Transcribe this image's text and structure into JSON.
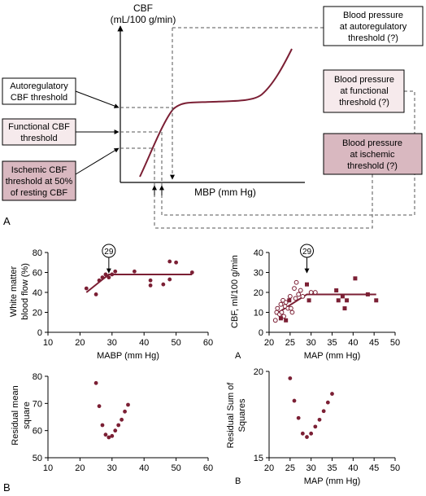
{
  "colors": {
    "curve": "#7b1f34",
    "box_light": "#f6eaec",
    "box_dark": "#d9b8c0",
    "axis": "#000000",
    "dashed": "#555555"
  },
  "panel_a_top": {
    "panel_label": "A",
    "yaxis_label_line1": "CBF",
    "yaxis_label_line2": "(mL/100 g/min)",
    "xaxis_label": "MBP (mm Hg)",
    "left_labels": [
      {
        "lines": [
          "Autoregulatory",
          "CBF threshold"
        ],
        "fill": "white"
      },
      {
        "lines": [
          "Functional CBF",
          "threshold"
        ],
        "fill": "light"
      },
      {
        "lines": [
          "Ischemic CBF",
          "threshold at 50%",
          "of resting CBF"
        ],
        "fill": "dark"
      }
    ],
    "right_labels": [
      {
        "lines": [
          "Blood pressure",
          "at autoregulatory",
          "threshold (?)"
        ],
        "fill": "white"
      },
      {
        "lines": [
          "Blood pressure",
          "at functional",
          "threshold (?)"
        ],
        "fill": "light"
      },
      {
        "lines": [
          "Blood pressure",
          "at ischemic",
          "threshold (?)"
        ],
        "fill": "dark"
      }
    ]
  },
  "chart_data": [
    {
      "type": "scatter",
      "ylabel": "White matter blood flow (%)",
      "xlabel": "MABP (mm Hg)",
      "xlim": [
        10,
        60
      ],
      "ylim": [
        0,
        80
      ],
      "xticks": [
        10,
        20,
        30,
        40,
        50,
        60
      ],
      "yticks": [
        0,
        20,
        40,
        60,
        80
      ],
      "points": [
        [
          22,
          44
        ],
        [
          25,
          38
        ],
        [
          26,
          52
        ],
        [
          27,
          55
        ],
        [
          28,
          58
        ],
        [
          29,
          55
        ],
        [
          30,
          58
        ],
        [
          31,
          61
        ],
        [
          37,
          61
        ],
        [
          42,
          52
        ],
        [
          42,
          47
        ],
        [
          46,
          48
        ],
        [
          48,
          53
        ],
        [
          48,
          71
        ],
        [
          50,
          70
        ],
        [
          55,
          60
        ]
      ],
      "fit_line": [
        [
          22,
          40
        ],
        [
          29,
          58
        ],
        [
          55,
          58
        ]
      ],
      "annotation": {
        "text": "29",
        "x": 29
      }
    },
    {
      "type": "scatter",
      "ylabel": "CBF, ml/100 g/min",
      "xlabel": "MAP (mm Hg)",
      "sublabel": "A",
      "xlim": [
        20,
        50
      ],
      "ylim": [
        0,
        40
      ],
      "xticks": [
        20,
        25,
        30,
        35,
        40,
        45,
        50
      ],
      "yticks": [
        0,
        10,
        20,
        30,
        40
      ],
      "points_open": [
        [
          21.5,
          6
        ],
        [
          21.8,
          10
        ],
        [
          22,
          12
        ],
        [
          22.5,
          9
        ],
        [
          22.8,
          14
        ],
        [
          23,
          10
        ],
        [
          23.3,
          16
        ],
        [
          23.5,
          8
        ],
        [
          23.8,
          13
        ],
        [
          24,
          15
        ],
        [
          24.5,
          12
        ],
        [
          25,
          18
        ],
        [
          25.2,
          12
        ],
        [
          25.5,
          10
        ],
        [
          26,
          22
        ],
        [
          26.3,
          17
        ],
        [
          26.5,
          25
        ],
        [
          27,
          19
        ],
        [
          27.5,
          21
        ],
        [
          28,
          18
        ],
        [
          30,
          20
        ],
        [
          31,
          20
        ]
      ],
      "points_filled": [
        [
          22.8,
          7
        ],
        [
          24,
          6
        ],
        [
          24.8,
          16
        ],
        [
          29,
          24
        ],
        [
          29.5,
          16
        ],
        [
          36,
          21
        ],
        [
          36.5,
          16
        ],
        [
          37.5,
          18
        ],
        [
          38,
          12
        ],
        [
          38.5,
          16
        ],
        [
          40.5,
          27
        ],
        [
          43.5,
          19
        ],
        [
          45.5,
          16
        ]
      ],
      "fit_line": [
        [
          21.5,
          9
        ],
        [
          29,
          19
        ],
        [
          45.5,
          19
        ]
      ],
      "annotation": {
        "text": "29",
        "x": 29
      }
    },
    {
      "type": "scatter",
      "ylabel": "Residual mean square",
      "xlabel": "",
      "xlim": [
        10,
        60
      ],
      "ylim": [
        50,
        80
      ],
      "xticks": [
        10,
        20,
        30,
        40,
        50,
        60
      ],
      "yticks": [
        50,
        60,
        70,
        80
      ],
      "points": [
        [
          25,
          77.5
        ],
        [
          26,
          69
        ],
        [
          27,
          62
        ],
        [
          28,
          58.5
        ],
        [
          29,
          57.5
        ],
        [
          30,
          58
        ],
        [
          31,
          60
        ],
        [
          32,
          62
        ],
        [
          33,
          64
        ],
        [
          34,
          67
        ],
        [
          35,
          69.5
        ]
      ]
    },
    {
      "type": "scatter",
      "ylabel": "Residual Sum of Squares",
      "xlabel": "MAP (mm Hg)",
      "sublabel": "B",
      "xlim": [
        20,
        50
      ],
      "ylim": [
        15,
        20
      ],
      "xticks": [
        20,
        25,
        30,
        35,
        40,
        45,
        50
      ],
      "yticks": [
        15,
        20
      ],
      "points": [
        [
          25,
          19.6
        ],
        [
          26,
          18.3
        ],
        [
          27,
          17.3
        ],
        [
          28,
          16.4
        ],
        [
          29,
          16.2
        ],
        [
          30,
          16.4
        ],
        [
          31,
          16.8
        ],
        [
          32,
          17.2
        ],
        [
          33,
          17.7
        ],
        [
          34,
          18.2
        ],
        [
          35,
          18.7
        ]
      ]
    }
  ],
  "bottom_labels": {
    "left": "B"
  }
}
